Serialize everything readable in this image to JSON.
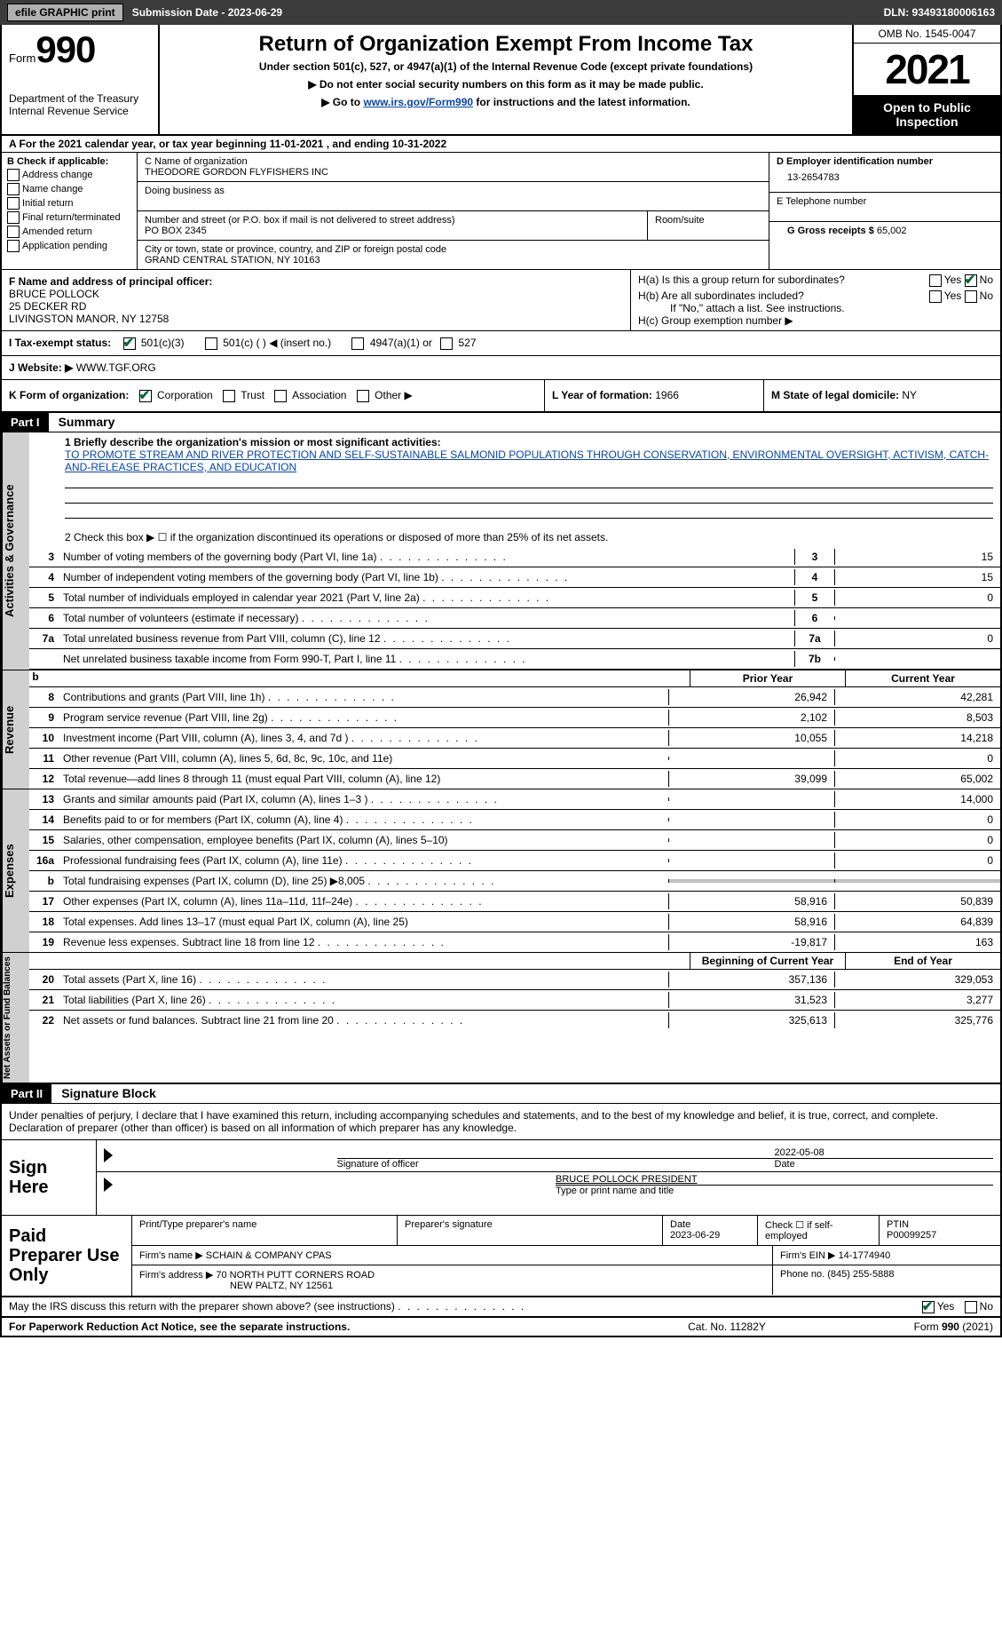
{
  "toolbar": {
    "efile_btn": "efile GRAPHIC print",
    "submission_label": "Submission Date - 2023-06-29",
    "dln": "DLN: 93493180006163"
  },
  "header": {
    "form_word": "Form",
    "form_number": "990",
    "title": "Return of Organization Exempt From Income Tax",
    "subtitle": "Under section 501(c), 527, or 4947(a)(1) of the Internal Revenue Code (except private foundations)",
    "instr1": "▶ Do not enter social security numbers on this form as it may be made public.",
    "instr2_pre": "▶ Go to ",
    "instr2_link": "www.irs.gov/Form990",
    "instr2_post": " for instructions and the latest information.",
    "dept": "Department of the Treasury\nInternal Revenue Service",
    "omb": "OMB No. 1545-0047",
    "year": "2021",
    "open_public": "Open to Public Inspection"
  },
  "row_a": {
    "text_pre": "A For the 2021 calendar year, or tax year beginning ",
    "begin": "11-01-2021",
    "mid": " , and ending ",
    "end": "10-31-2022"
  },
  "col_b": {
    "label": "B Check if applicable:",
    "opts": [
      "Address change",
      "Name change",
      "Initial return",
      "Final return/terminated",
      "Amended return",
      "Application pending"
    ]
  },
  "col_c": {
    "name_label": "C Name of organization",
    "name": "THEODORE GORDON FLYFISHERS INC",
    "dba_label": "Doing business as",
    "addr_label": "Number and street (or P.O. box if mail is not delivered to street address)",
    "room_label": "Room/suite",
    "addr": "PO BOX 2345",
    "city_label": "City or town, state or province, country, and ZIP or foreign postal code",
    "city": "GRAND CENTRAL STATION, NY  10163"
  },
  "col_d": {
    "ein_label": "D Employer identification number",
    "ein": "13-2654783",
    "tel_label": "E Telephone number",
    "gross_label": "G Gross receipts $ ",
    "gross": "65,002"
  },
  "row_f": {
    "label": "F  Name and address of principal officer:",
    "name": "BRUCE POLLOCK",
    "addr1": "25 DECKER RD",
    "addr2": "LIVINGSTON MANOR, NY  12758"
  },
  "row_h": {
    "ha": "H(a)  Is this a group return for subordinates?",
    "hb": "H(b)  Are all subordinates included?",
    "hb_note": "If \"No,\" attach a list. See instructions.",
    "hc": "H(c)  Group exemption number ▶",
    "yes": "Yes",
    "no": "No"
  },
  "row_i": {
    "label": "I   Tax-exempt status:",
    "opt1": "501(c)(3)",
    "opt2": "501(c) (   ) ◀ (insert no.)",
    "opt3": "4947(a)(1) or",
    "opt4": "527"
  },
  "row_j": {
    "label": "J   Website: ▶ ",
    "value": "WWW.TGF.ORG"
  },
  "row_k": {
    "label": "K Form of organization:",
    "opts": [
      "Corporation",
      "Trust",
      "Association",
      "Other ▶"
    ]
  },
  "row_l": {
    "label": "L Year of formation: ",
    "value": "1966"
  },
  "row_m": {
    "label": "M State of legal domicile: ",
    "value": "NY"
  },
  "part1": {
    "header": "Part I",
    "title": "Summary",
    "line1_label": "1   Briefly describe the organization's mission or most significant activities:",
    "mission": "TO PROMOTE STREAM AND RIVER PROTECTION AND SELF-SUSTAINABLE SALMONID POPULATIONS THROUGH CONSERVATION, ENVIRONMENTAL OVERSIGHT, ACTIVISM, CATCH-AND-RELEASE PRACTICES, AND EDUCATION",
    "line2": "2   Check this box ▶ ☐  if the organization discontinued its operations or disposed of more than 25% of its net assets.",
    "vtab_ag": "Activities & Governance",
    "vtab_rev": "Revenue",
    "vtab_exp": "Expenses",
    "vtab_net": "Net Assets or Fund Balances",
    "prior_year": "Prior Year",
    "current_year": "Current Year",
    "begin_year": "Beginning of Current Year",
    "end_year": "End of Year",
    "lines_ag": [
      {
        "n": "3",
        "d": "Number of voting members of the governing body (Part VI, line 1a)",
        "box": "3",
        "v": "15"
      },
      {
        "n": "4",
        "d": "Number of independent voting members of the governing body (Part VI, line 1b)",
        "box": "4",
        "v": "15"
      },
      {
        "n": "5",
        "d": "Total number of individuals employed in calendar year 2021 (Part V, line 2a)",
        "box": "5",
        "v": "0"
      },
      {
        "n": "6",
        "d": "Total number of volunteers (estimate if necessary)",
        "box": "6",
        "v": ""
      },
      {
        "n": "7a",
        "d": "Total unrelated business revenue from Part VIII, column (C), line 12",
        "box": "7a",
        "v": "0"
      },
      {
        "n": "",
        "d": "Net unrelated business taxable income from Form 990-T, Part I, line 11",
        "box": "7b",
        "v": ""
      }
    ],
    "lines_rev": [
      {
        "n": "8",
        "d": "Contributions and grants (Part VIII, line 1h)",
        "p": "26,942",
        "c": "42,281"
      },
      {
        "n": "9",
        "d": "Program service revenue (Part VIII, line 2g)",
        "p": "2,102",
        "c": "8,503"
      },
      {
        "n": "10",
        "d": "Investment income (Part VIII, column (A), lines 3, 4, and 7d )",
        "p": "10,055",
        "c": "14,218"
      },
      {
        "n": "11",
        "d": "Other revenue (Part VIII, column (A), lines 5, 6d, 8c, 9c, 10c, and 11e)",
        "p": "",
        "c": "0"
      },
      {
        "n": "12",
        "d": "Total revenue—add lines 8 through 11 (must equal Part VIII, column (A), line 12)",
        "p": "39,099",
        "c": "65,002"
      }
    ],
    "lines_exp": [
      {
        "n": "13",
        "d": "Grants and similar amounts paid (Part IX, column (A), lines 1–3 )",
        "p": "",
        "c": "14,000"
      },
      {
        "n": "14",
        "d": "Benefits paid to or for members (Part IX, column (A), line 4)",
        "p": "",
        "c": "0"
      },
      {
        "n": "15",
        "d": "Salaries, other compensation, employee benefits (Part IX, column (A), lines 5–10)",
        "p": "",
        "c": "0"
      },
      {
        "n": "16a",
        "d": "Professional fundraising fees (Part IX, column (A), line 11e)",
        "p": "",
        "c": "0"
      },
      {
        "n": "b",
        "d": "Total fundraising expenses (Part IX, column (D), line 25) ▶8,005",
        "p": "__SHADED__",
        "c": "__SHADED__"
      },
      {
        "n": "17",
        "d": "Other expenses (Part IX, column (A), lines 11a–11d, 11f–24e)",
        "p": "58,916",
        "c": "50,839"
      },
      {
        "n": "18",
        "d": "Total expenses. Add lines 13–17 (must equal Part IX, column (A), line 25)",
        "p": "58,916",
        "c": "64,839"
      },
      {
        "n": "19",
        "d": "Revenue less expenses. Subtract line 18 from line 12",
        "p": "-19,817",
        "c": "163"
      }
    ],
    "lines_net": [
      {
        "n": "20",
        "d": "Total assets (Part X, line 16)",
        "p": "357,136",
        "c": "329,053"
      },
      {
        "n": "21",
        "d": "Total liabilities (Part X, line 26)",
        "p": "31,523",
        "c": "3,277"
      },
      {
        "n": "22",
        "d": "Net assets or fund balances. Subtract line 21 from line 20",
        "p": "325,613",
        "c": "325,776"
      }
    ]
  },
  "part2": {
    "header": "Part II",
    "title": "Signature Block",
    "penalty": "Under penalties of perjury, I declare that I have examined this return, including accompanying schedules and statements, and to the best of my knowledge and belief, it is true, correct, and complete. Declaration of preparer (other than officer) is based on all information of which preparer has any knowledge.",
    "sign_here": "Sign Here",
    "sig_officer": "Signature of officer",
    "sig_date": "2022-05-08",
    "date_label": "Date",
    "officer_name": "BRUCE POLLOCK  PRESIDENT",
    "type_name": "Type or print name and title",
    "paid_prep": "Paid Preparer Use Only",
    "print_name_label": "Print/Type preparer's name",
    "prep_sig_label": "Preparer's signature",
    "prep_date_label": "Date",
    "prep_date": "2023-06-29",
    "check_self": "Check ☐ if self-employed",
    "ptin_label": "PTIN",
    "ptin": "P00099257",
    "firm_name_label": "Firm's name    ▶ ",
    "firm_name": "SCHAIN & COMPANY CPAS",
    "firm_ein_label": "Firm's EIN ▶ ",
    "firm_ein": "14-1774940",
    "firm_addr_label": "Firm's address ▶ ",
    "firm_addr1": "70 NORTH PUTT CORNERS ROAD",
    "firm_addr2": "NEW PALTZ, NY  12561",
    "phone_label": "Phone no. ",
    "phone": "(845) 255-5888",
    "discuss": "May the IRS discuss this return with the preparer shown above? (see instructions)"
  },
  "footer": {
    "paperwork": "For Paperwork Reduction Act Notice, see the separate instructions.",
    "cat": "Cat. No. 11282Y",
    "form": "Form 990 (2021)"
  }
}
